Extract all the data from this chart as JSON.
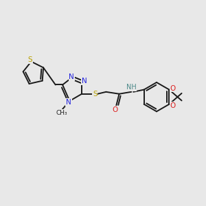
{
  "background_color": "#e8e8e8",
  "bond_color": "#1a1a1a",
  "N_color": "#2020dd",
  "S_color": "#b8a000",
  "O_color": "#dd2020",
  "H_color": "#4a8888",
  "figsize": [
    3.0,
    3.0
  ],
  "dpi": 100,
  "xlim": [
    0,
    10
  ],
  "ylim": [
    0,
    10
  ]
}
